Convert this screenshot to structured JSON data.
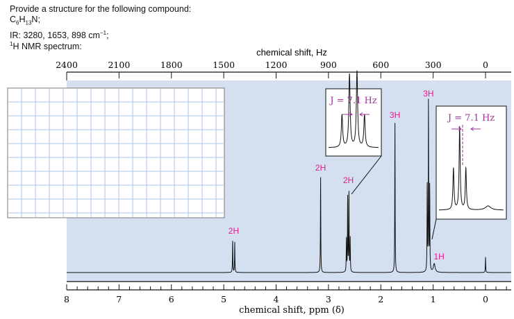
{
  "question": {
    "line1": "Provide a structure for the following compound:",
    "formula": {
      "c": "C",
      "c_sub": "6",
      "h": "H",
      "h_sub": "13",
      "rest": "N;"
    },
    "ir": "IR: 3280, 1653, 898 cm",
    "ir_sup": "−1",
    "ir_end": ";",
    "nmr_sup": "1",
    "nmr": "H NMR spectrum:"
  },
  "chart_data": {
    "type": "line",
    "xlabel": "chemical shift, ppm (δ)",
    "x2label": "chemical shift, Hz",
    "xlim": [
      8,
      0
    ],
    "x2lim": [
      2400,
      0
    ],
    "xticks": [
      "8",
      "7",
      "6",
      "5",
      "4",
      "3",
      "2",
      "1",
      "0"
    ],
    "x2ticks": [
      "2400",
      "2100",
      "1800",
      "1500",
      "1200",
      "900",
      "600",
      "300",
      "0"
    ],
    "minor_tick_step_ppm": 0.2,
    "background_color": "#d4dff0",
    "label_color": "#e8198b",
    "inset_color": "#a0329b",
    "peaks": [
      {
        "ppm": 4.83,
        "intensity": 0.19
      },
      {
        "ppm": 4.79,
        "intensity": 0.18
      },
      {
        "ppm": 3.15,
        "intensity": 0.56
      },
      {
        "ppm": 2.657,
        "intensity": 0.2
      },
      {
        "ppm": 2.633,
        "intensity": 0.45
      },
      {
        "ppm": 2.609,
        "intensity": 0.47
      },
      {
        "ppm": 2.585,
        "intensity": 0.2
      },
      {
        "ppm": 1.73,
        "intensity": 0.87
      },
      {
        "ppm": 1.114,
        "intensity": 0.5
      },
      {
        "ppm": 1.09,
        "intensity": 1.0
      },
      {
        "ppm": 1.066,
        "intensity": 0.5
      },
      {
        "ppm": 0.98,
        "intensity": 0.05,
        "broad": true
      },
      {
        "ppm": 0.0,
        "intensity": 0.09
      }
    ],
    "integrations": [
      {
        "label": "2H",
        "ppm": 4.81
      },
      {
        "label": "2H",
        "ppm": 3.15
      },
      {
        "label": "2H",
        "ppm": 2.62
      },
      {
        "label": "3H",
        "ppm": 1.73
      },
      {
        "label": "3H",
        "ppm": 1.09
      },
      {
        "label": "1H",
        "ppm": 0.98
      }
    ],
    "insets": [
      {
        "label": "J = 7.1 Hz",
        "range_ppm": [
          2.7,
          2.54
        ]
      },
      {
        "label": "J = 7.1 Hz",
        "range_ppm": [
          1.17,
          0.92
        ]
      }
    ]
  }
}
